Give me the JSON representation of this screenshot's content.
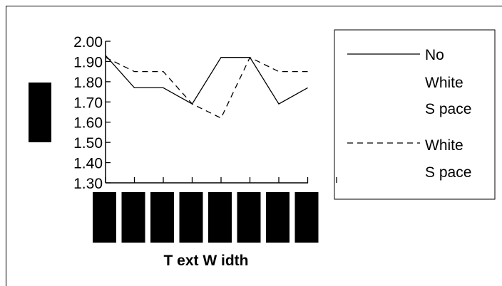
{
  "chart_data": {
    "type": "line",
    "title": "",
    "xlabel": "T ext W idth",
    "ylabel": "",
    "ylim": [
      1.3,
      2.0
    ],
    "yticks": [
      "1.30",
      "1.40",
      "1.50",
      "1.60",
      "1.70",
      "1.80",
      "1.90",
      "2.00"
    ],
    "x": [
      1,
      2,
      3,
      4,
      5,
      6,
      7,
      8
    ],
    "series": [
      {
        "name": "No White S pace",
        "legend_lines": [
          "No",
          "White",
          "S pace"
        ],
        "style": "solid",
        "values": [
          1.93,
          1.77,
          1.77,
          1.69,
          1.92,
          1.92,
          1.69,
          1.77
        ]
      },
      {
        "name": "White S pace",
        "legend_lines": [
          "White",
          "S pace"
        ],
        "style": "dashed",
        "values": [
          1.92,
          1.85,
          1.85,
          1.69,
          1.62,
          1.92,
          1.85,
          1.85
        ]
      }
    ],
    "grid": false,
    "legend_position": "right"
  }
}
